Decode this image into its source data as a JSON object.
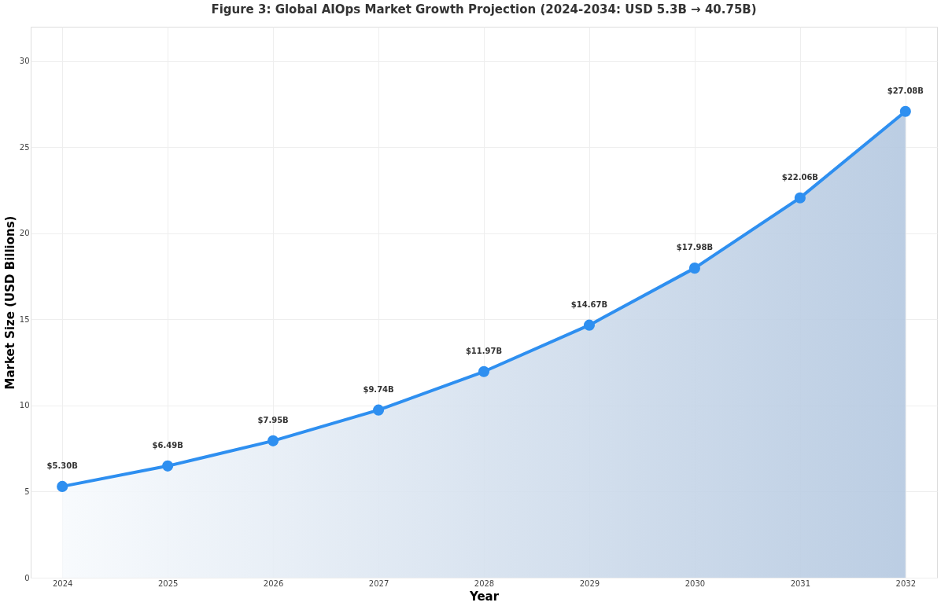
{
  "chart_data": {
    "type": "area",
    "title": "Figure 3: Global AIOps Market Growth Projection (2024-2034: USD 5.3B → 40.75B)",
    "xlabel": "Year",
    "ylabel": "Market Size (USD Billions)",
    "categories": [
      "2024",
      "2025",
      "2026",
      "2027",
      "2028",
      "2029",
      "2030",
      "2031",
      "2032"
    ],
    "series": [
      {
        "color": "#2e8ff0",
        "values": [
          5.3,
          6.49,
          7.95,
          9.74,
          11.97,
          14.67,
          17.98,
          22.06,
          27.08
        ],
        "value_labels": [
          "$5.30B",
          "$6.49B",
          "$7.95B",
          "$9.74B",
          "$11.97B",
          "$14.67B",
          "$17.98B",
          "$22.06B",
          "$27.08B"
        ]
      }
    ],
    "ylim": [
      0,
      32
    ],
    "yticks": [
      0,
      5,
      10,
      15,
      20,
      25,
      30
    ],
    "grid": true,
    "marker": "circle",
    "line_style": "solid"
  }
}
